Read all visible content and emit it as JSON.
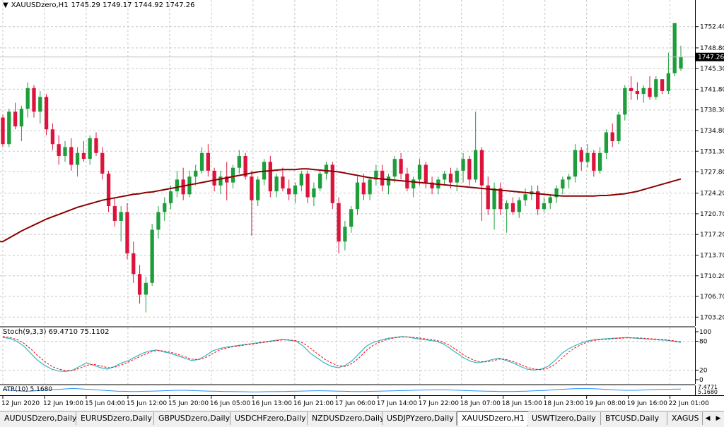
{
  "header": {
    "symbol": "XAUUSDzero,H1",
    "ohlc": "1745.29 1749.17 1744.92 1747.26"
  },
  "stoch_header": "Stoch(9,3,3) 69.4710 75.1102",
  "atr_header": "ATR(10) 5.1680",
  "colors": {
    "bull": "#1e9e3a",
    "bear": "#dc143c",
    "ma": "#8b0000",
    "stoch_main": "#35b6c4",
    "stoch_signal": "#ff0000",
    "atr": "#1e90ff",
    "grid": "#c8c8c8"
  },
  "chart_data": {
    "type": "candlestick",
    "price_labels": [
      "1752.40",
      "1748.80",
      "1745.30",
      "1741.80",
      "1738.30",
      "1734.80",
      "1731.30",
      "1727.80",
      "1724.20",
      "1720.70",
      "1717.20",
      "1713.70",
      "1710.20",
      "1706.70",
      "1703.20"
    ],
    "ylim": [
      1702.4,
      1755.0
    ],
    "current_price": "1747.26",
    "time_labels": [
      "12 Jun 2020",
      "12 Jun 19:00",
      "15 Jun 04:00",
      "15 Jun 12:00",
      "15 Jun 20:00",
      "16 Jun 05:00",
      "16 Jun 13:00",
      "16 Jun 21:00",
      "17 Jun 06:00",
      "17 Jun 14:00",
      "17 Jun 22:00",
      "18 Jun 07:00",
      "18 Jun 15:00",
      "18 Jun 23:00",
      "19 Jun 08:00",
      "19 Jun 16:00",
      "22 Jun 01:00"
    ],
    "candles": [
      [
        1737.0,
        1737.5,
        1732.0,
        1732.5
      ],
      [
        1732.5,
        1738.5,
        1732.0,
        1738.0
      ],
      [
        1738.0,
        1739.5,
        1735.0,
        1735.5
      ],
      [
        1735.5,
        1739.0,
        1733.0,
        1738.5
      ],
      [
        1738.5,
        1743.0,
        1737.0,
        1742.0
      ],
      [
        1742.0,
        1742.5,
        1737.0,
        1738.0
      ],
      [
        1738.0,
        1741.5,
        1736.0,
        1740.5
      ],
      [
        1740.5,
        1741.0,
        1734.0,
        1735.0
      ],
      [
        1735.0,
        1736.0,
        1731.5,
        1732.5
      ],
      [
        1732.5,
        1734.0,
        1729.0,
        1730.5
      ],
      [
        1730.5,
        1733.0,
        1729.5,
        1732.0
      ],
      [
        1732.0,
        1733.5,
        1728.0,
        1729.0
      ],
      [
        1729.0,
        1732.0,
        1727.0,
        1731.0
      ],
      [
        1731.0,
        1733.0,
        1729.5,
        1730.0
      ],
      [
        1730.0,
        1734.0,
        1729.0,
        1733.5
      ],
      [
        1733.5,
        1734.5,
        1730.5,
        1731.0
      ],
      [
        1731.0,
        1732.0,
        1726.5,
        1727.5
      ],
      [
        1727.5,
        1728.0,
        1721.0,
        1722.0
      ],
      [
        1722.0,
        1723.5,
        1718.5,
        1719.5
      ],
      [
        1719.5,
        1722.0,
        1716.0,
        1721.0
      ],
      [
        1721.0,
        1722.5,
        1713.0,
        1714.0
      ],
      [
        1714.0,
        1716.0,
        1709.0,
        1710.5
      ],
      [
        1710.5,
        1712.0,
        1705.5,
        1707.0
      ],
      [
        1707.0,
        1710.0,
        1704.0,
        1709.0
      ],
      [
        1709.0,
        1719.0,
        1708.5,
        1718.0
      ],
      [
        1718.0,
        1722.0,
        1716.5,
        1721.0
      ],
      [
        1721.0,
        1723.5,
        1719.5,
        1722.5
      ],
      [
        1722.5,
        1725.5,
        1721.5,
        1724.5
      ],
      [
        1724.5,
        1728.0,
        1723.5,
        1726.5
      ],
      [
        1726.5,
        1728.5,
        1723.0,
        1724.0
      ],
      [
        1724.0,
        1728.0,
        1723.5,
        1727.0
      ],
      [
        1727.0,
        1729.0,
        1725.5,
        1728.0
      ],
      [
        1728.0,
        1732.0,
        1727.5,
        1731.0
      ],
      [
        1731.0,
        1732.5,
        1727.0,
        1728.0
      ],
      [
        1728.0,
        1728.5,
        1724.5,
        1725.5
      ],
      [
        1725.5,
        1728.0,
        1724.0,
        1727.0
      ],
      [
        1727.0,
        1729.5,
        1723.0,
        1726.0
      ],
      [
        1726.0,
        1729.0,
        1725.0,
        1728.5
      ],
      [
        1728.5,
        1731.5,
        1727.5,
        1730.5
      ],
      [
        1730.5,
        1731.0,
        1726.5,
        1727.0
      ],
      [
        1727.0,
        1728.0,
        1717.0,
        1723.0
      ],
      [
        1723.0,
        1727.0,
        1722.0,
        1726.5
      ],
      [
        1726.5,
        1730.0,
        1725.5,
        1729.5
      ],
      [
        1729.5,
        1730.5,
        1723.5,
        1724.5
      ],
      [
        1724.5,
        1727.5,
        1723.5,
        1727.0
      ],
      [
        1727.0,
        1728.5,
        1724.5,
        1725.0
      ],
      [
        1725.0,
        1726.5,
        1723.0,
        1724.0
      ],
      [
        1724.0,
        1726.0,
        1722.5,
        1725.5
      ],
      [
        1725.5,
        1728.0,
        1724.5,
        1727.5
      ],
      [
        1727.5,
        1728.0,
        1722.5,
        1723.5
      ],
      [
        1723.5,
        1726.0,
        1722.0,
        1725.0
      ],
      [
        1725.0,
        1728.0,
        1724.5,
        1727.5
      ],
      [
        1727.5,
        1729.5,
        1726.5,
        1729.0
      ],
      [
        1729.0,
        1729.5,
        1721.5,
        1722.5
      ],
      [
        1722.5,
        1723.5,
        1714.0,
        1716.0
      ],
      [
        1716.0,
        1719.5,
        1714.5,
        1718.5
      ],
      [
        1718.5,
        1722.0,
        1717.5,
        1721.5
      ],
      [
        1721.5,
        1727.0,
        1720.5,
        1726.0
      ],
      [
        1726.0,
        1727.5,
        1723.0,
        1724.0
      ],
      [
        1724.0,
        1727.0,
        1723.0,
        1726.5
      ],
      [
        1726.5,
        1729.0,
        1725.5,
        1728.0
      ],
      [
        1728.0,
        1729.0,
        1724.5,
        1725.5
      ],
      [
        1725.5,
        1727.5,
        1724.0,
        1727.0
      ],
      [
        1727.0,
        1730.5,
        1726.0,
        1730.0
      ],
      [
        1730.0,
        1731.0,
        1726.5,
        1727.5
      ],
      [
        1727.5,
        1728.5,
        1724.5,
        1725.0
      ],
      [
        1725.0,
        1727.0,
        1723.5,
        1726.5
      ],
      [
        1726.5,
        1730.0,
        1725.5,
        1729.0
      ],
      [
        1729.0,
        1729.5,
        1725.0,
        1726.0
      ],
      [
        1726.0,
        1727.0,
        1724.0,
        1725.0
      ],
      [
        1725.0,
        1727.0,
        1724.0,
        1726.5
      ],
      [
        1726.5,
        1728.0,
        1725.5,
        1727.5
      ],
      [
        1727.5,
        1728.5,
        1725.0,
        1726.0
      ],
      [
        1726.0,
        1728.5,
        1724.5,
        1728.0
      ],
      [
        1728.0,
        1731.0,
        1726.0,
        1730.0
      ],
      [
        1730.0,
        1730.5,
        1725.5,
        1726.5
      ],
      [
        1726.5,
        1738.0,
        1726.0,
        1731.5
      ],
      [
        1731.5,
        1732.0,
        1719.5,
        1725.5
      ],
      [
        1725.5,
        1727.0,
        1720.5,
        1721.5
      ],
      [
        1721.5,
        1726.0,
        1718.0,
        1725.0
      ],
      [
        1725.0,
        1726.0,
        1720.5,
        1721.5
      ],
      [
        1721.5,
        1723.0,
        1717.5,
        1722.5
      ],
      [
        1722.5,
        1723.5,
        1720.5,
        1721.0
      ],
      [
        1721.0,
        1723.5,
        1720.0,
        1723.0
      ],
      [
        1723.0,
        1725.0,
        1722.0,
        1724.0
      ],
      [
        1724.0,
        1725.5,
        1723.0,
        1724.5
      ],
      [
        1724.5,
        1725.5,
        1720.5,
        1721.5
      ],
      [
        1721.5,
        1723.5,
        1721.0,
        1722.5
      ],
      [
        1722.5,
        1724.0,
        1721.5,
        1723.5
      ],
      [
        1723.5,
        1725.5,
        1722.5,
        1725.0
      ],
      [
        1725.0,
        1727.0,
        1724.0,
        1726.5
      ],
      [
        1726.5,
        1727.5,
        1725.0,
        1727.0
      ],
      [
        1727.0,
        1732.5,
        1726.0,
        1731.5
      ],
      [
        1731.5,
        1732.0,
        1728.0,
        1729.5
      ],
      [
        1729.5,
        1732.5,
        1728.5,
        1731.0
      ],
      [
        1731.0,
        1731.5,
        1727.0,
        1728.0
      ],
      [
        1728.0,
        1732.0,
        1727.5,
        1731.0
      ],
      [
        1731.0,
        1735.0,
        1730.0,
        1734.5
      ],
      [
        1734.5,
        1736.0,
        1732.0,
        1733.0
      ],
      [
        1733.0,
        1738.0,
        1732.5,
        1737.5
      ],
      [
        1737.5,
        1742.5,
        1736.5,
        1742.0
      ],
      [
        1742.0,
        1744.0,
        1740.0,
        1741.5
      ],
      [
        1741.5,
        1743.0,
        1740.0,
        1741.0
      ],
      [
        1741.0,
        1742.5,
        1739.5,
        1742.0
      ],
      [
        1742.0,
        1744.0,
        1740.0,
        1740.5
      ],
      [
        1740.5,
        1744.0,
        1740.0,
        1743.5
      ],
      [
        1743.5,
        1743.5,
        1741.0,
        1741.5
      ],
      [
        1741.5,
        1748.0,
        1741.0,
        1744.5
      ],
      [
        1744.5,
        1753.0,
        1744.0,
        1753.0
      ],
      [
        1745.29,
        1749.17,
        1744.92,
        1747.26
      ]
    ],
    "ma": [
      1716.0,
      1716.6,
      1717.2,
      1717.8,
      1718.3,
      1718.8,
      1719.3,
      1719.8,
      1720.2,
      1720.6,
      1721.0,
      1721.4,
      1721.8,
      1722.1,
      1722.4,
      1722.7,
      1723.0,
      1723.2,
      1723.4,
      1723.6,
      1723.8,
      1724.0,
      1724.1,
      1724.3,
      1724.4,
      1724.6,
      1724.8,
      1725.0,
      1725.2,
      1725.4,
      1725.6,
      1725.8,
      1726.0,
      1726.2,
      1726.4,
      1726.6,
      1726.8,
      1727.0,
      1727.2,
      1727.4,
      1727.6,
      1727.8,
      1727.9,
      1728.0,
      1728.1,
      1728.2,
      1728.2,
      1728.2,
      1728.3,
      1728.3,
      1728.2,
      1728.1,
      1728.0,
      1727.9,
      1727.8,
      1727.6,
      1727.4,
      1727.2,
      1727.0,
      1726.8,
      1726.7,
      1726.6,
      1726.5,
      1726.4,
      1726.3,
      1726.2,
      1726.1,
      1726.0,
      1725.9,
      1725.8,
      1725.7,
      1725.6,
      1725.5,
      1725.4,
      1725.3,
      1725.2,
      1725.1,
      1725.0,
      1724.9,
      1724.8,
      1724.7,
      1724.6,
      1724.5,
      1724.4,
      1724.3,
      1724.2,
      1724.1,
      1724.0,
      1723.9,
      1723.8,
      1723.7,
      1723.7,
      1723.7,
      1723.7,
      1723.7,
      1723.7,
      1723.8,
      1723.8,
      1723.9,
      1724.0,
      1724.1,
      1724.3,
      1724.5,
      1724.8,
      1725.1,
      1725.4,
      1725.7,
      1726.0,
      1726.3,
      1726.6
    ],
    "stoch_levels": [
      "100",
      "80",
      "20",
      "0"
    ],
    "stoch_main": [
      88,
      86,
      80,
      70,
      55,
      40,
      30,
      22,
      18,
      17,
      20,
      28,
      35,
      30,
      25,
      22,
      28,
      35,
      40,
      48,
      55,
      60,
      62,
      58,
      55,
      50,
      45,
      40,
      42,
      50,
      60,
      65,
      68,
      70,
      72,
      74,
      76,
      78,
      80,
      82,
      84,
      82,
      80,
      70,
      55,
      45,
      35,
      28,
      25,
      30,
      40,
      55,
      70,
      78,
      82,
      86,
      88,
      90,
      89,
      86,
      84,
      82,
      80,
      75,
      65,
      55,
      45,
      38,
      35,
      38,
      42,
      45,
      40,
      35,
      28,
      22,
      20,
      22,
      28,
      40,
      55,
      65,
      72,
      78,
      82,
      84,
      85,
      86,
      87,
      88,
      87,
      86,
      85,
      84,
      83,
      82,
      80,
      78
    ],
    "stoch_signal": [
      90,
      88,
      84,
      76,
      64,
      50,
      38,
      28,
      22,
      19,
      19,
      24,
      30,
      32,
      29,
      25,
      26,
      31,
      37,
      44,
      51,
      57,
      61,
      60,
      57,
      53,
      48,
      43,
      42,
      46,
      54,
      62,
      66,
      69,
      71,
      73,
      75,
      77,
      79,
      81,
      83,
      83,
      81,
      76,
      66,
      54,
      43,
      35,
      29,
      28,
      34,
      46,
      61,
      72,
      79,
      84,
      87,
      89,
      89,
      88,
      86,
      84,
      82,
      78,
      71,
      61,
      51,
      43,
      38,
      37,
      39,
      43,
      42,
      38,
      32,
      26,
      22,
      21,
      24,
      32,
      45,
      58,
      68,
      75,
      80,
      83,
      84,
      85,
      86,
      87,
      87,
      87,
      86,
      85,
      84,
      83,
      81,
      79
    ],
    "atr_label": "7.4771",
    "atr_label2": "5.1680",
    "atr": [
      0.55,
      0.5,
      0.45,
      0.4,
      0.4,
      0.45,
      0.5,
      0.55,
      0.6,
      0.65,
      0.7,
      0.7,
      0.65,
      0.6,
      0.55,
      0.5,
      0.45,
      0.4,
      0.38,
      0.36,
      0.35,
      0.38,
      0.4,
      0.42,
      0.45,
      0.48,
      0.5,
      0.5,
      0.48,
      0.45,
      0.42,
      0.4,
      0.38,
      0.36,
      0.35,
      0.34,
      0.33,
      0.32,
      0.32,
      0.33,
      0.34,
      0.35,
      0.36,
      0.38,
      0.4,
      0.42,
      0.44,
      0.45,
      0.44,
      0.42,
      0.4,
      0.38,
      0.36,
      0.35,
      0.36,
      0.38,
      0.4,
      0.42,
      0.44,
      0.46,
      0.48,
      0.5,
      0.52,
      0.54,
      0.55,
      0.56,
      0.55,
      0.53,
      0.5,
      0.47,
      0.44,
      0.42,
      0.4,
      0.38,
      0.36,
      0.35,
      0.36,
      0.38,
      0.4,
      0.43,
      0.46,
      0.5,
      0.55,
      0.6,
      0.65,
      0.68,
      0.7,
      0.7,
      0.68,
      0.65,
      0.6,
      0.55,
      0.52,
      0.5,
      0.5,
      0.52,
      0.55,
      0.58,
      0.6,
      0.62,
      0.63,
      0.64
    ]
  },
  "tabs": [
    "AUDUSDzero,Daily",
    "EURUSDzero,Daily",
    "GBPUSDzero,Daily",
    "USDCHFzero,Daily",
    "NZDUSDzero,Daily",
    "USDJPYzero,Daily",
    "XAUUSDzero,H1",
    "USWTIzero,Daily",
    "BTCUSD,Daily",
    "XAGUS"
  ],
  "active_tab": "XAUUSDzero,H1"
}
